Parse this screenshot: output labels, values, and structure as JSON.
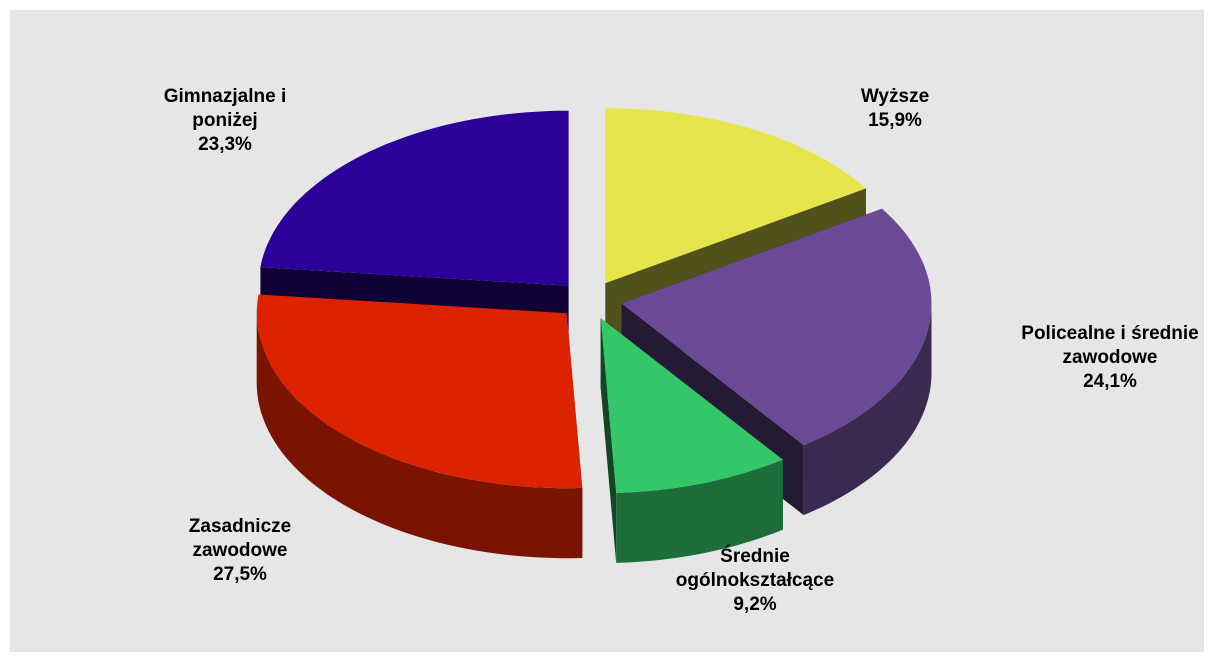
{
  "chart_data": {
    "type": "pie",
    "categories": [
      "Wyższe",
      "Policealne i średnie zawodowe",
      "Średnie ogólnokształcące",
      "Zasadnicze zawodowe",
      "Gimnazjalne i poniżej"
    ],
    "values": [
      15.9,
      24.1,
      9.2,
      27.5,
      23.3
    ],
    "value_labels": [
      "15,9%",
      "24,1%",
      "9,2%",
      "27,5%",
      "23,3%"
    ],
    "colors": [
      "#e6e64c",
      "#6a4a94",
      "#33c76a",
      "#dd2200",
      "#2a0099"
    ]
  }
}
